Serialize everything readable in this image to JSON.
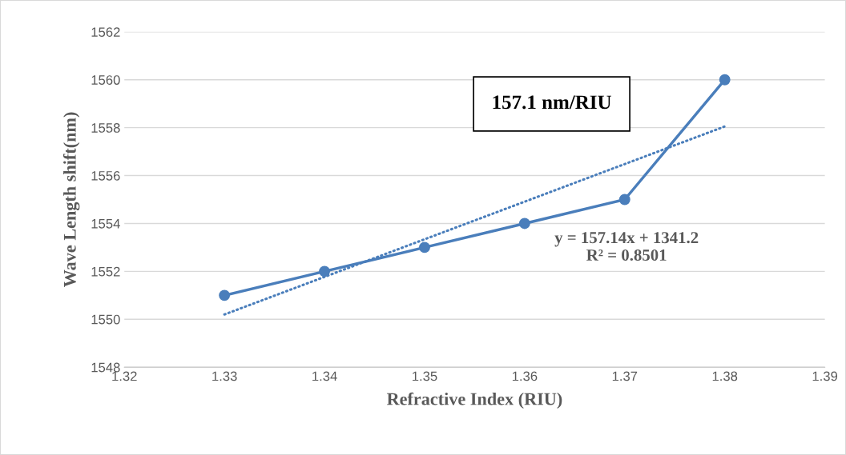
{
  "chart_data": {
    "type": "line",
    "xlabel": "Refractive Index (RIU)",
    "ylabel": "Wave Length shift(nm)",
    "x": [
      1.33,
      1.34,
      1.35,
      1.36,
      1.37,
      1.38
    ],
    "series": [
      {
        "color": "#4a7ebb",
        "values": [
          1551,
          1552,
          1553,
          1554,
          1555,
          1560
        ],
        "marker": "circle",
        "line_style": "solid"
      },
      {
        "color": "#4a7ebb",
        "x": [
          1.33,
          1.38
        ],
        "values": [
          1550.2,
          1558.05
        ],
        "marker": "none",
        "line_style": "dotted"
      }
    ],
    "xlim": [
      1.32,
      1.39
    ],
    "xticks": [
      1.32,
      1.33,
      1.34,
      1.35,
      1.36,
      1.37,
      1.38,
      1.39
    ],
    "ylim": [
      1548,
      1562
    ],
    "yticks": [
      1548,
      1550,
      1552,
      1554,
      1556,
      1558,
      1560,
      1562
    ],
    "grid": "y",
    "annotations": [
      "157.1 nm/RIU",
      "y = 157.14x + 1341.2\nR² = 0.8501"
    ]
  }
}
